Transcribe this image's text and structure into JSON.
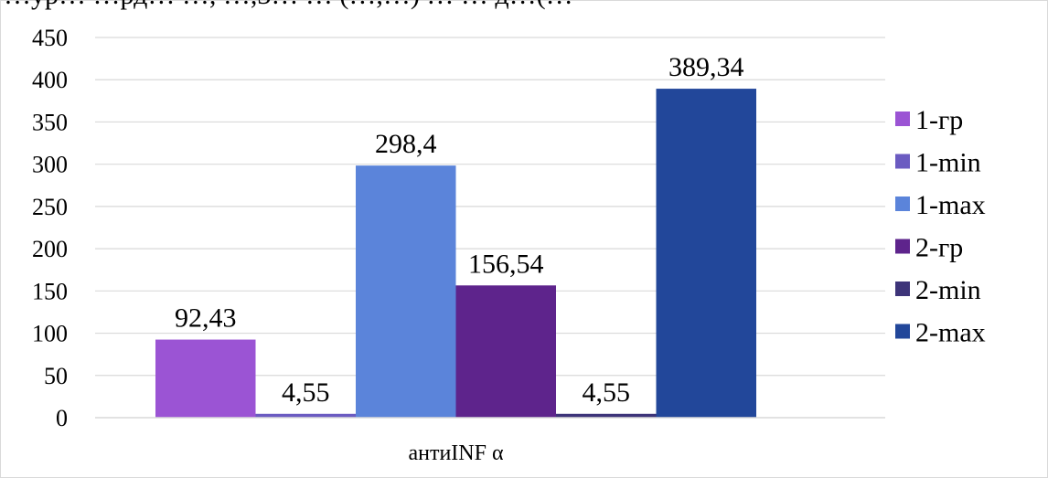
{
  "header_fragment": "…ур… …рд… …, …,3… … (…,…) … … д…(…",
  "chart_data": {
    "type": "bar",
    "categories": [
      "антиINF α"
    ],
    "series": [
      {
        "name": "1-гр",
        "values": [
          92.43
        ],
        "label": "92,43",
        "color": "#9b54d4"
      },
      {
        "name": "1-min",
        "values": [
          4.55
        ],
        "label": "4,55",
        "color": "#6b5bc1"
      },
      {
        "name": "1-max",
        "values": [
          298.4
        ],
        "label": "298,4",
        "color": "#5b84da"
      },
      {
        "name": "2-гр",
        "values": [
          156.54
        ],
        "label": "156,54",
        "color": "#5e248c"
      },
      {
        "name": "2-min",
        "values": [
          4.55
        ],
        "label": "4,55",
        "color": "#3d3479"
      },
      {
        "name": "2-max",
        "values": [
          389.34
        ],
        "label": "389,34",
        "color": "#22479a"
      }
    ],
    "ylim": [
      0,
      450
    ],
    "yticks": [
      "0",
      "50",
      "100",
      "150",
      "200",
      "250",
      "300",
      "350",
      "400",
      "450"
    ],
    "grid": true,
    "legend_position": "right"
  }
}
